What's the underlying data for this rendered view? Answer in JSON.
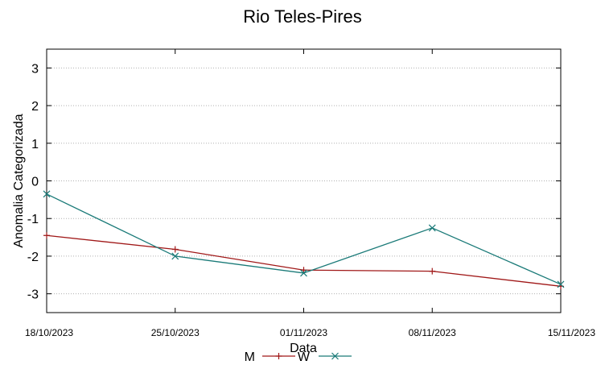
{
  "chart_data": {
    "type": "line",
    "title": "Rio Teles-Pires",
    "xlabel": "Data",
    "ylabel": "Anomalia Categorizada",
    "categories": [
      "18/10/2023",
      "25/10/2023",
      "01/11/2023",
      "08/11/2023",
      "15/11/2023"
    ],
    "yticks": [
      3,
      2,
      1,
      0,
      -1,
      -2,
      -3
    ],
    "ylim": [
      -3.5,
      3.5
    ],
    "grid": true,
    "legend_position": "bottom-center",
    "series": [
      {
        "name": "M",
        "color": "#a01818",
        "marker": "plus",
        "values": [
          -1.45,
          -1.82,
          -2.37,
          -2.4,
          -2.8
        ]
      },
      {
        "name": "W",
        "color": "#1a7a78",
        "marker": "cross",
        "values": [
          -0.35,
          -2.0,
          -2.45,
          -1.25,
          -2.75
        ]
      }
    ]
  }
}
